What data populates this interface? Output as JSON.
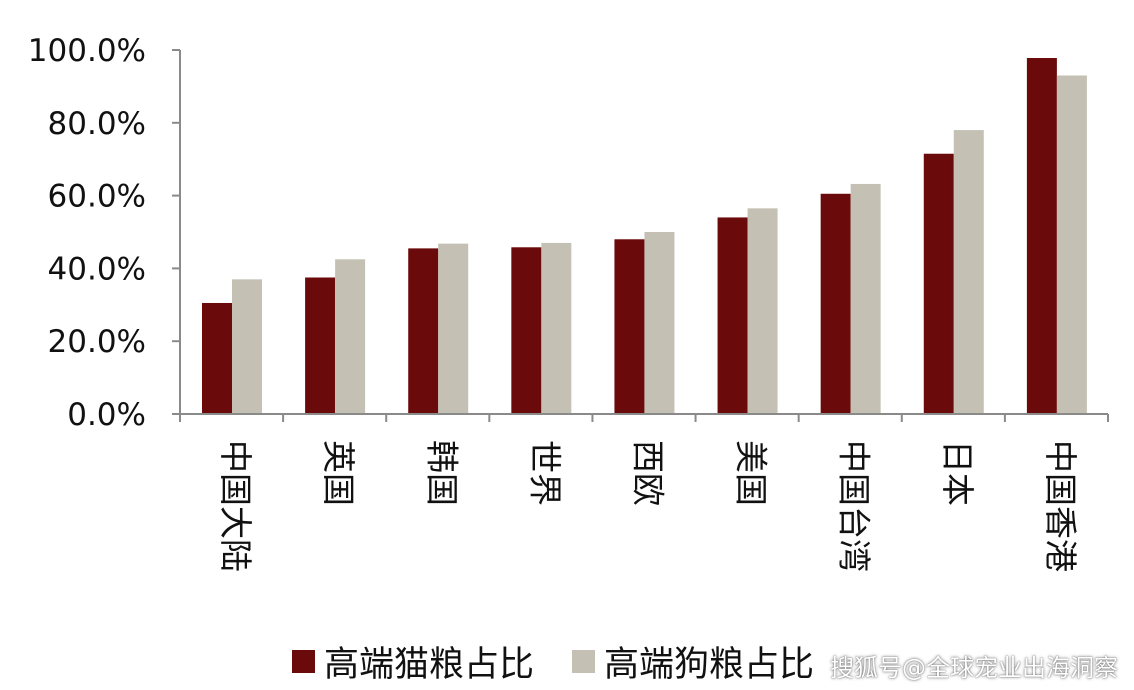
{
  "chart_data": {
    "type": "bar",
    "categories": [
      "中国大陆",
      "英国",
      "韩国",
      "世界",
      "西欧",
      "美国",
      "中国台湾",
      "日本",
      "中国香港"
    ],
    "series": [
      {
        "name": "高端猫粮占比",
        "color": "#6b0a0a",
        "values": [
          30.5,
          37.5,
          45.5,
          45.8,
          48.0,
          54.0,
          60.5,
          71.5,
          97.8
        ]
      },
      {
        "name": "高端狗粮占比",
        "color": "#c4c1b4",
        "values": [
          37.0,
          42.5,
          46.8,
          47.0,
          50.0,
          56.5,
          63.2,
          78.0,
          93.0
        ]
      }
    ],
    "ylim": [
      0,
      100
    ],
    "yticks": [
      "0.0%",
      "20.0%",
      "40.0%",
      "60.0%",
      "80.0%",
      "100.0%"
    ],
    "legend_position": "bottom"
  },
  "watermark": "搜狐号@全球宠业出海洞察"
}
